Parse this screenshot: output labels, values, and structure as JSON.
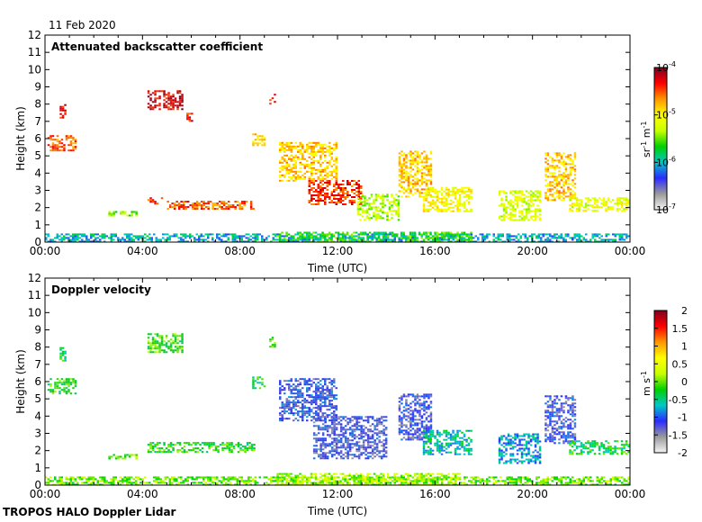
{
  "date_label": "11 Feb 2020",
  "footer": "TROPOS HALO Doppler Lidar",
  "colors": {
    "colormap": [
      "#f5f5f5",
      "#9a9a9a",
      "#2b2bff",
      "#00c8c8",
      "#00d000",
      "#c8ff00",
      "#ffff00",
      "#ff9600",
      "#ff0000",
      "#800020"
    ]
  },
  "chart_data": [
    {
      "type": "heatmap",
      "title": "Attenuated backscatter coefficient",
      "xlabel": "Time (UTC)",
      "ylabel": "Height (km)",
      "x_ticks": [
        "00:00",
        "04:00",
        "08:00",
        "12:00",
        "16:00",
        "20:00",
        "00:00"
      ],
      "y_ticks": [
        "0",
        "1",
        "2",
        "3",
        "4",
        "5",
        "6",
        "7",
        "8",
        "9",
        "10",
        "11",
        "12"
      ],
      "xlim_hours": [
        0,
        24
      ],
      "ylim_km": [
        0,
        12
      ],
      "colorbar": {
        "ticks": [
          "10",
          "10",
          "10",
          "10"
        ],
        "tick_exponents": [
          "-4",
          "-5",
          "-6",
          "-7"
        ],
        "unit_main": "sr",
        "unit_sup1": "-1",
        "unit_m": " m",
        "unit_sup2": "-1",
        "log_range": [
          -7,
          -4
        ]
      },
      "features": [
        {
          "kind": "layer",
          "t": [
            0.1,
            1.3
          ],
          "z": [
            5.3,
            6.2
          ],
          "v": 0.82
        },
        {
          "kind": "layer",
          "t": [
            0.6,
            0.8
          ],
          "z": [
            7.2,
            8.0
          ],
          "v": 0.9
        },
        {
          "kind": "layer",
          "t": [
            4.2,
            5.6
          ],
          "z": [
            7.7,
            8.8
          ],
          "v": 0.92
        },
        {
          "kind": "layer",
          "t": [
            5.8,
            6.0
          ],
          "z": [
            7.0,
            7.5
          ],
          "v": 0.9
        },
        {
          "kind": "layer",
          "t": [
            2.6,
            3.8
          ],
          "z": [
            1.5,
            1.8
          ],
          "v": 0.5
        },
        {
          "kind": "layer",
          "t": [
            4.2,
            4.8
          ],
          "z": [
            2.2,
            2.6
          ],
          "v": 0.85
        },
        {
          "kind": "layer",
          "t": [
            5.0,
            8.6
          ],
          "z": [
            1.9,
            2.4
          ],
          "v": 0.82
        },
        {
          "kind": "layer",
          "t": [
            8.5,
            9.0
          ],
          "z": [
            5.6,
            6.3
          ],
          "v": 0.7
        },
        {
          "kind": "layer",
          "t": [
            9.2,
            9.4
          ],
          "z": [
            8.0,
            8.6
          ],
          "v": 0.9
        },
        {
          "kind": "layer",
          "t": [
            9.6,
            12.0
          ],
          "z": [
            3.6,
            5.8
          ],
          "v": 0.72
        },
        {
          "kind": "layer",
          "t": [
            10.8,
            13.0
          ],
          "z": [
            2.2,
            3.6
          ],
          "v": 0.85
        },
        {
          "kind": "layer",
          "t": [
            12.8,
            14.5
          ],
          "z": [
            1.3,
            2.8
          ],
          "v": 0.55
        },
        {
          "kind": "layer",
          "t": [
            14.5,
            15.8
          ],
          "z": [
            2.6,
            5.3
          ],
          "v": 0.72
        },
        {
          "kind": "layer",
          "t": [
            15.5,
            17.5
          ],
          "z": [
            1.8,
            3.2
          ],
          "v": 0.65
        },
        {
          "kind": "layer",
          "t": [
            18.6,
            20.3
          ],
          "z": [
            1.3,
            3.0
          ],
          "v": 0.6
        },
        {
          "kind": "layer",
          "t": [
            20.5,
            21.7
          ],
          "z": [
            2.4,
            5.2
          ],
          "v": 0.72
        },
        {
          "kind": "layer",
          "t": [
            21.5,
            24.0
          ],
          "z": [
            1.8,
            2.6
          ],
          "v": 0.62
        },
        {
          "kind": "layer",
          "t": [
            0.0,
            24.0
          ],
          "z": [
            0.0,
            0.5
          ],
          "v": 0.33
        },
        {
          "kind": "layer",
          "t": [
            9.5,
            17.5
          ],
          "z": [
            0.0,
            0.6
          ],
          "v": 0.45
        }
      ]
    },
    {
      "type": "heatmap",
      "title": "Doppler velocity",
      "xlabel": "Time (UTC)",
      "ylabel": "Height (km)",
      "x_ticks": [
        "00:00",
        "04:00",
        "08:00",
        "12:00",
        "16:00",
        "20:00",
        "00:00"
      ],
      "y_ticks": [
        "0",
        "1",
        "2",
        "3",
        "4",
        "5",
        "6",
        "7",
        "8",
        "9",
        "10",
        "11",
        "12"
      ],
      "xlim_hours": [
        0,
        24
      ],
      "ylim_km": [
        0,
        12
      ],
      "colorbar": {
        "ticks": [
          "2",
          "1.5",
          "1",
          "0.5",
          "0",
          "-0.5",
          "-1",
          "-1.5",
          "-2"
        ],
        "unit_main": "m s",
        "unit_sup": "-1",
        "range": [
          -2,
          2
        ]
      },
      "features": [
        {
          "kind": "layer",
          "t": [
            0.1,
            1.3
          ],
          "z": [
            5.3,
            6.2
          ],
          "v": 0.45
        },
        {
          "kind": "layer",
          "t": [
            0.6,
            0.8
          ],
          "z": [
            7.2,
            8.0
          ],
          "v": 0.42
        },
        {
          "kind": "layer",
          "t": [
            4.2,
            5.6
          ],
          "z": [
            7.7,
            8.8
          ],
          "v": 0.47
        },
        {
          "kind": "layer",
          "t": [
            2.6,
            3.8
          ],
          "z": [
            1.5,
            1.8
          ],
          "v": 0.48
        },
        {
          "kind": "layer",
          "t": [
            4.2,
            8.6
          ],
          "z": [
            1.9,
            2.5
          ],
          "v": 0.45
        },
        {
          "kind": "layer",
          "t": [
            8.5,
            9.0
          ],
          "z": [
            5.6,
            6.3
          ],
          "v": 0.42
        },
        {
          "kind": "layer",
          "t": [
            9.2,
            9.4
          ],
          "z": [
            8.0,
            8.6
          ],
          "v": 0.45
        },
        {
          "kind": "layer",
          "t": [
            9.6,
            12.0
          ],
          "z": [
            3.8,
            6.2
          ],
          "v": 0.22
        },
        {
          "kind": "layer",
          "t": [
            11.0,
            14.0
          ],
          "z": [
            1.5,
            4.0
          ],
          "v": 0.2
        },
        {
          "kind": "layer",
          "t": [
            14.5,
            15.8
          ],
          "z": [
            2.6,
            5.3
          ],
          "v": 0.2
        },
        {
          "kind": "layer",
          "t": [
            15.5,
            17.5
          ],
          "z": [
            1.8,
            3.2
          ],
          "v": 0.35
        },
        {
          "kind": "layer",
          "t": [
            18.6,
            20.3
          ],
          "z": [
            1.3,
            3.0
          ],
          "v": 0.3
        },
        {
          "kind": "layer",
          "t": [
            20.5,
            21.7
          ],
          "z": [
            2.4,
            5.2
          ],
          "v": 0.2
        },
        {
          "kind": "layer",
          "t": [
            21.5,
            24.0
          ],
          "z": [
            1.8,
            2.6
          ],
          "v": 0.42
        },
        {
          "kind": "layer",
          "t": [
            0.0,
            24.0
          ],
          "z": [
            0.0,
            0.5
          ],
          "v": 0.5
        },
        {
          "kind": "layer",
          "t": [
            9.5,
            17.0
          ],
          "z": [
            0.0,
            0.7
          ],
          "v": 0.55
        }
      ]
    }
  ]
}
